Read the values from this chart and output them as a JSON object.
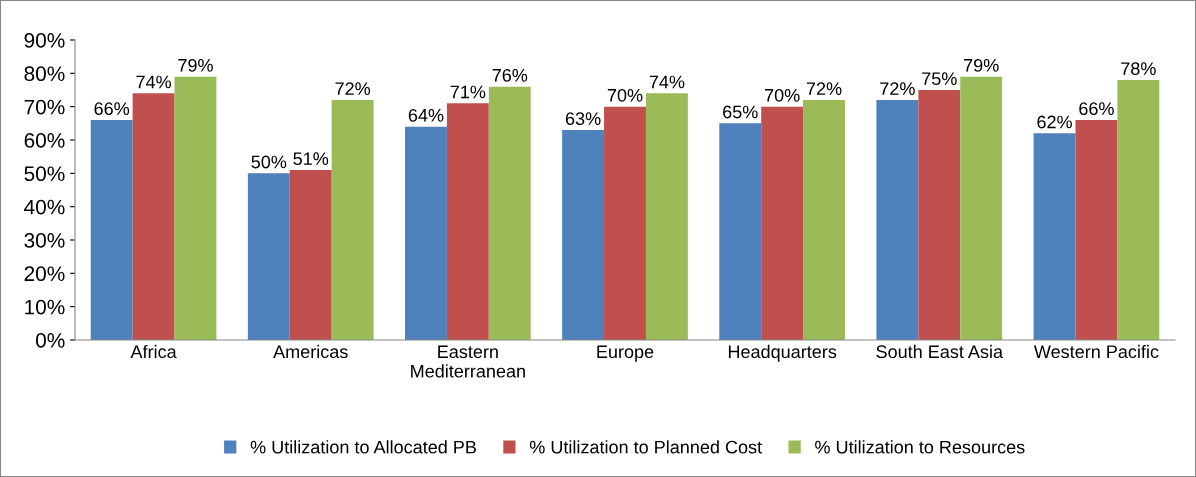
{
  "chart_data": {
    "type": "bar",
    "categories": [
      "Africa",
      "Americas",
      "Eastern\nMediterranean",
      "Europe",
      "Headquarters",
      "South East Asia",
      "Western Pacific"
    ],
    "series": [
      {
        "name": "% Utilization to Allocated PB",
        "color": "#4f81bd",
        "values": [
          66,
          50,
          64,
          63,
          65,
          72,
          62
        ],
        "value_labels": [
          "66%",
          "50%",
          "64%",
          "63%",
          "65%",
          "72%",
          "62%"
        ]
      },
      {
        "name": "% Utilization to Planned Cost",
        "color": "#c0504d",
        "values": [
          74,
          51,
          71,
          70,
          70,
          75,
          66
        ],
        "value_labels": [
          "74%",
          "51%",
          "71%",
          "70%",
          "70%",
          "75%",
          "66%"
        ]
      },
      {
        "name": "% Utilization to Resources",
        "color": "#9bbb59",
        "values": [
          79,
          72,
          76,
          74,
          72,
          79,
          78
        ],
        "value_labels": [
          "79%",
          "72%",
          "76%",
          "74%",
          "72%",
          "79%",
          "78%"
        ]
      }
    ],
    "ylim": [
      0,
      90
    ],
    "yticks": [
      {
        "value": 0,
        "label": "0%"
      },
      {
        "value": 10,
        "label": "10%"
      },
      {
        "value": 20,
        "label": "20%"
      },
      {
        "value": 30,
        "label": "30%"
      },
      {
        "value": 40,
        "label": "40%"
      },
      {
        "value": 50,
        "label": "50%"
      },
      {
        "value": 60,
        "label": "60%"
      },
      {
        "value": 70,
        "label": "70%"
      },
      {
        "value": 80,
        "label": "80%"
      },
      {
        "value": 90,
        "label": "90%"
      }
    ],
    "grid": false,
    "legend": "bottom"
  }
}
